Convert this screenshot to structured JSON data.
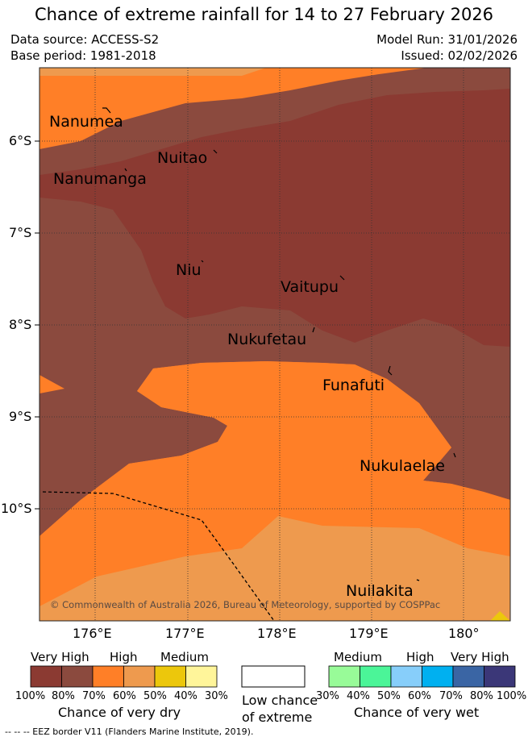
{
  "title": "Chance of extreme rainfall for 14 to 27 February 2026",
  "meta": {
    "source": "Data source: ACCESS-S2",
    "base": "Base period: 1981-2018",
    "run": "Model Run: 31/01/2026",
    "issued": "Issued: 02/02/2026"
  },
  "map": {
    "lat_ticks": [
      "6°S",
      "7°S",
      "8°S",
      "9°S",
      "10°S"
    ],
    "lon_ticks": [
      "176°E",
      "177°E",
      "178°E",
      "179°E",
      "180°"
    ],
    "places": [
      {
        "id": "nanumea",
        "name": "Nanumea"
      },
      {
        "id": "nuitao",
        "name": "Nuitao"
      },
      {
        "id": "nanumanga",
        "name": "Nanumanga"
      },
      {
        "id": "niu",
        "name": "Niu"
      },
      {
        "id": "vaitupu",
        "name": "Vaitupu"
      },
      {
        "id": "nukufetau",
        "name": "Nukufetau"
      },
      {
        "id": "funafuti",
        "name": "Funafuti"
      },
      {
        "id": "nukulaelae",
        "name": "Nukulaelae"
      },
      {
        "id": "nuilakita",
        "name": "Nuilakita"
      }
    ],
    "copyright": "© Commonwealth of Australia 2026, Bureau of Meteorology, supported by COSPPac"
  },
  "legend": {
    "dry": {
      "headers": [
        "Very High",
        "High",
        "Medium"
      ],
      "percents": [
        "100%",
        "80%",
        "70%",
        "60%",
        "50%",
        "40%",
        "30%"
      ],
      "colors": [
        "#8b3a32",
        "#8b4a3e",
        "#ff7f27",
        "#ee9a4e",
        "#ecc70c",
        "#fff59a"
      ],
      "title": "Chance of very dry"
    },
    "low": {
      "title_line1": "Low chance",
      "title_line2": "of extreme",
      "color": "#ffffff"
    },
    "wet": {
      "headers": [
        "Medium",
        "High",
        "Very High"
      ],
      "percents": [
        "30%",
        "40%",
        "50%",
        "60%",
        "70%",
        "80%",
        "100%"
      ],
      "colors": [
        "#98fb98",
        "#4bf598",
        "#87cefa",
        "#00b0f0",
        "#3a65a4",
        "#3b3778"
      ],
      "title": "Chance of very wet"
    }
  },
  "footer": "--  --  -- EEZ border V11 (Flanders Marine Institute, 2019).",
  "colors": {
    "very_high_dry": "#8b3a32",
    "very_high_dry_light": "#8b4a3e",
    "high_dry": "#ff7f27",
    "medium_dry": "#ee9a4e",
    "yellow": "#ecc70c"
  }
}
